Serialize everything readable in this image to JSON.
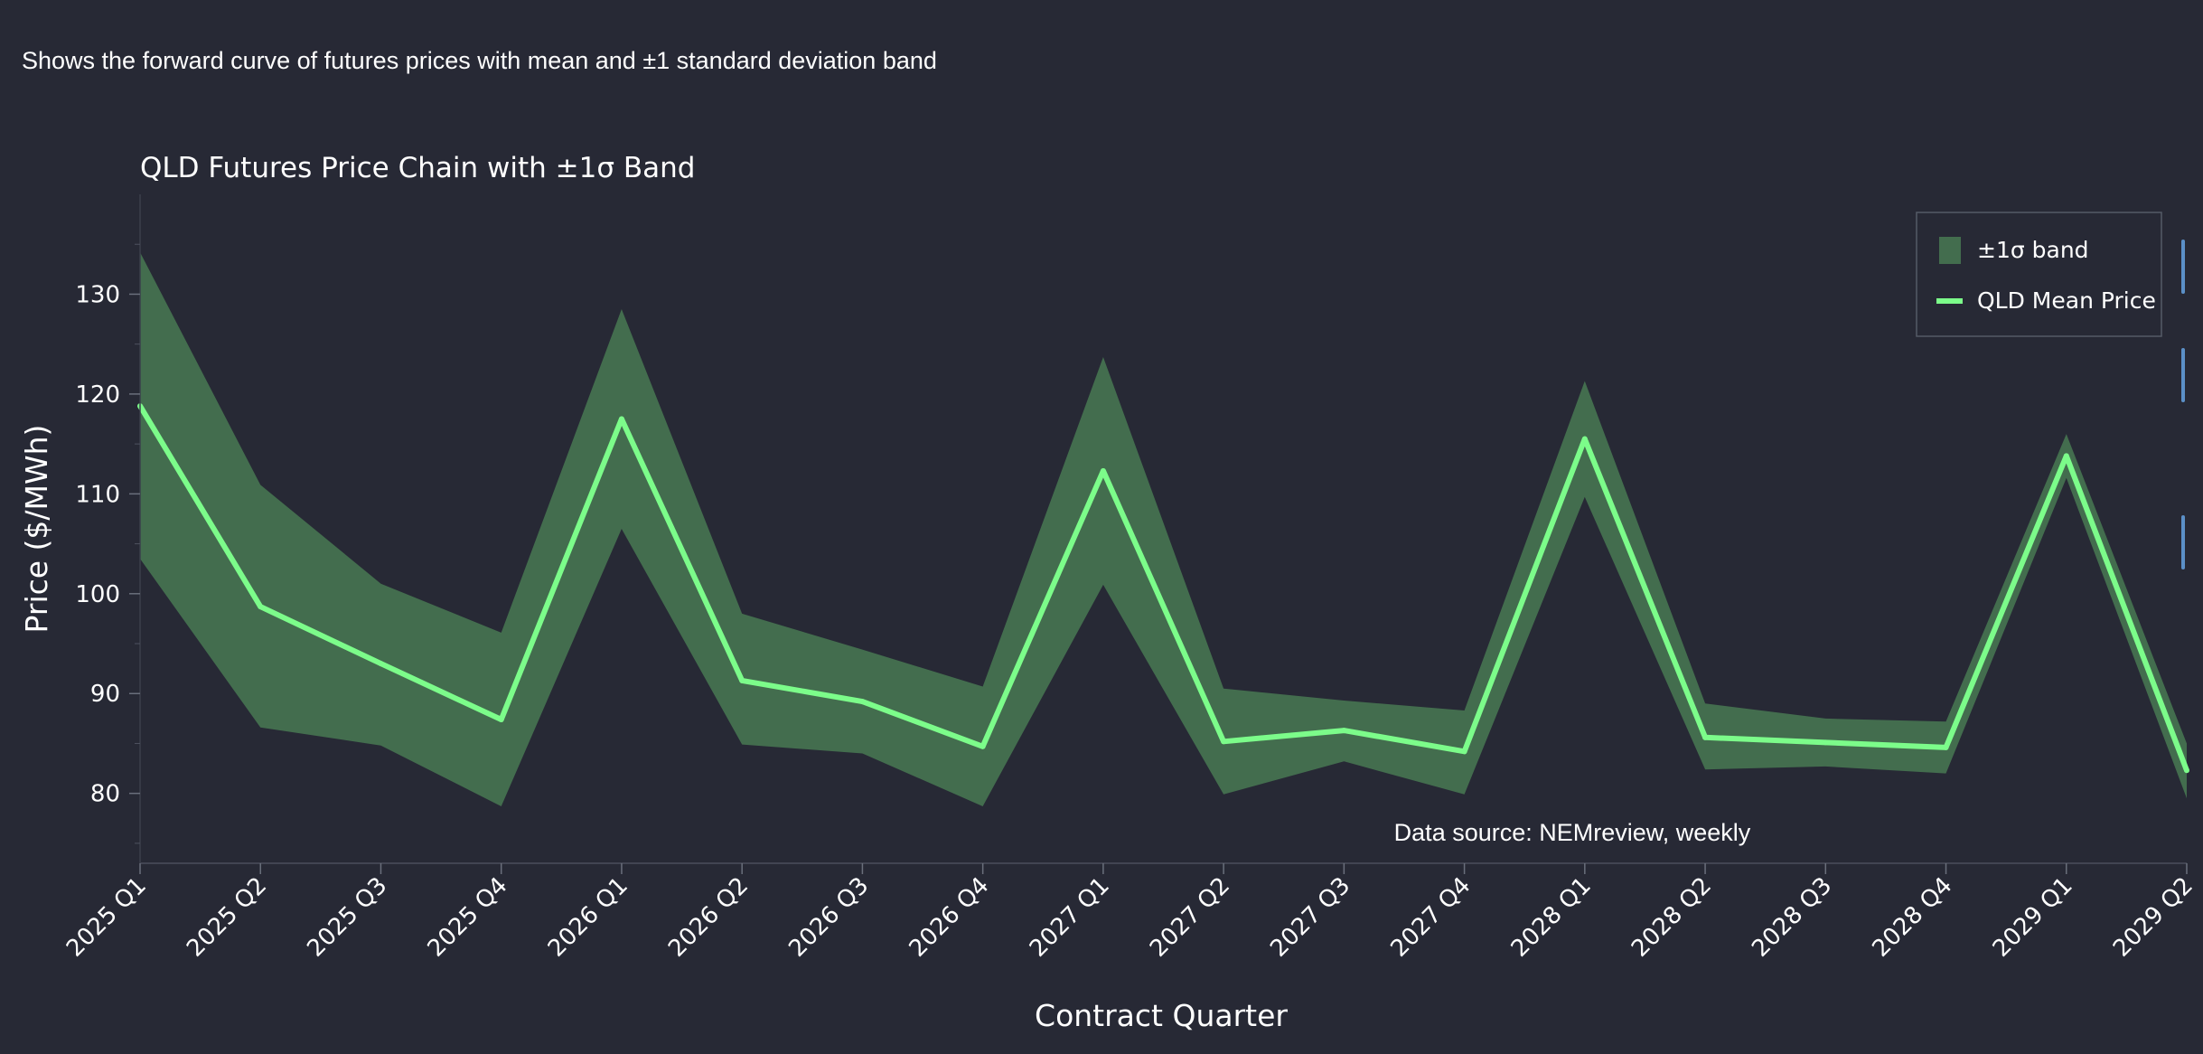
{
  "description": "Shows the forward curve of futures prices with mean and ±1 standard deviation band",
  "chart_data": {
    "type": "line",
    "title": "QLD Futures Price Chain with ±1σ Band",
    "xlabel": "Contract Quarter",
    "ylabel": "Price ($/MWh)",
    "categories": [
      "2025 Q1",
      "2025 Q2",
      "2025 Q3",
      "2025 Q4",
      "2026 Q1",
      "2026 Q2",
      "2026 Q3",
      "2026 Q4",
      "2027 Q1",
      "2027 Q2",
      "2027 Q3",
      "2027 Q4",
      "2028 Q1",
      "2028 Q2",
      "2028 Q3",
      "2028 Q4",
      "2029 Q1",
      "2029 Q2"
    ],
    "ylim": [
      73,
      140
    ],
    "yticks": [
      80,
      90,
      100,
      110,
      120,
      130
    ],
    "series": [
      {
        "name": "QLD Mean Price",
        "color": "#7cfc8a",
        "values": [
          118.8,
          98.7,
          93.0,
          87.4,
          117.5,
          91.3,
          89.2,
          84.7,
          112.3,
          85.2,
          86.3,
          84.2,
          115.5,
          85.6,
          85.1,
          84.6,
          113.8,
          82.3
        ]
      }
    ],
    "band": {
      "name": "±1σ band",
      "color": "#436d4e",
      "upper": [
        134.2,
        110.9,
        101.0,
        96.1,
        128.5,
        98.0,
        94.4,
        90.7,
        123.7,
        90.5,
        89.3,
        88.3,
        121.3,
        89.0,
        87.5,
        87.2,
        116.0,
        85.0
      ],
      "lower": [
        103.5,
        86.6,
        84.8,
        78.7,
        106.5,
        84.9,
        84.0,
        78.7,
        100.9,
        79.9,
        83.2,
        79.9,
        109.7,
        82.4,
        82.7,
        82.0,
        111.6,
        79.5
      ]
    },
    "legend_position": "top-right",
    "annotation": "Data source: NEMreview, weekly",
    "grid": false
  }
}
